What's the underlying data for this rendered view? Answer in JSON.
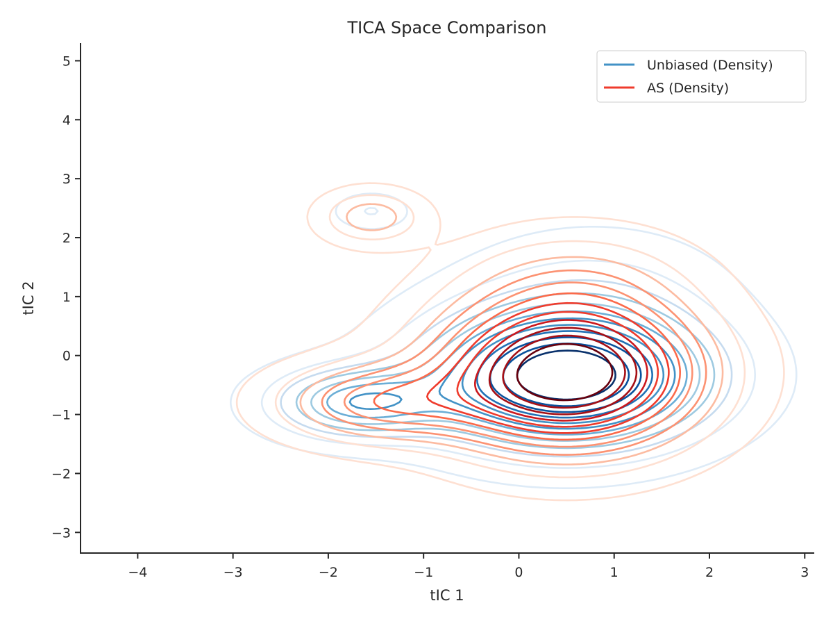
{
  "chart_data": {
    "type": "contour",
    "title": "TICA Space Comparison",
    "xlabel": "tIC 1",
    "ylabel": "tIC 2",
    "xlim": [
      -4.6,
      3.1
    ],
    "ylim": [
      -3.35,
      5.3
    ],
    "xticks": [
      -4,
      -3,
      -2,
      -1,
      0,
      1,
      2,
      3
    ],
    "yticks": [
      -3,
      -2,
      -1,
      0,
      1,
      2,
      3,
      4,
      5
    ],
    "xtick_labels": [
      "−4",
      "−3",
      "−2",
      "−1",
      "0",
      "1",
      "2",
      "3"
    ],
    "ytick_labels": [
      "−3",
      "−2",
      "−1",
      "0",
      "1",
      "2",
      "3",
      "4",
      "5"
    ],
    "grid": false,
    "legend_position": "top-right",
    "series": [
      {
        "name": "Unbiased (Density)",
        "color": "#4292c6",
        "colormap": [
          "#deebf7",
          "#c6dbef",
          "#9ecae1",
          "#6baed6",
          "#4292c6",
          "#2171b5",
          "#08519c",
          "#08306b"
        ],
        "modes": [
          {
            "cx": 0.5,
            "cy": -0.35,
            "sx": 0.95,
            "sy": 0.75,
            "w": 1.0
          },
          {
            "cx": -1.7,
            "cy": -0.8,
            "sx": 0.6,
            "sy": 0.4,
            "w": 0.45
          },
          {
            "cx": -1.55,
            "cy": 2.45,
            "sx": 0.25,
            "sy": 0.2,
            "w": 0.12
          },
          {
            "cx": 0.8,
            "cy": 1.2,
            "sx": 0.9,
            "sy": 0.7,
            "w": 0.1
          }
        ]
      },
      {
        "name": "AS (Density)",
        "color": "#ef3b2c",
        "colormap": [
          "#fee0d2",
          "#fcbba1",
          "#fc9272",
          "#fb6a4a",
          "#ef3b2c",
          "#cb181d",
          "#a50f15",
          "#67000d"
        ],
        "modes": [
          {
            "cx": 0.5,
            "cy": -0.3,
            "sx": 0.9,
            "sy": 0.85,
            "w": 1.0
          },
          {
            "cx": -1.5,
            "cy": -0.8,
            "sx": 0.7,
            "sy": 0.45,
            "w": 0.35
          },
          {
            "cx": -1.55,
            "cy": 2.35,
            "sx": 0.35,
            "sy": 0.3,
            "w": 0.25
          },
          {
            "cx": 0.6,
            "cy": 1.3,
            "sx": 0.8,
            "sy": 0.6,
            "w": 0.15
          }
        ]
      }
    ]
  }
}
